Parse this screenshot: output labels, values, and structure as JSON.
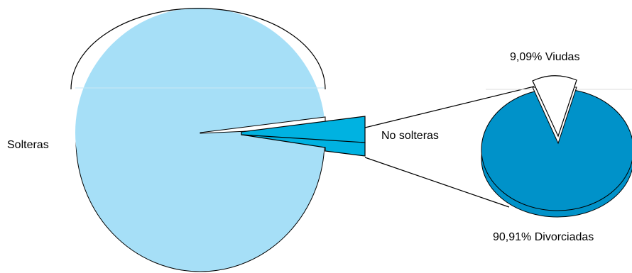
{
  "chart_data": {
    "type": "bar-of-pie",
    "main_pie": {
      "slices": [
        {
          "label": "Solteras",
          "color": "#a6dff7"
        },
        {
          "label": "No solteras",
          "color": "#00b2e1"
        }
      ]
    },
    "secondary_pie": {
      "slices": [
        {
          "label": "9,09% Viudas",
          "percent": 9.09,
          "color": "#ffffff"
        },
        {
          "label": "90,91% Divorciadas",
          "percent": 90.91,
          "color": "#0092c9"
        }
      ]
    }
  }
}
